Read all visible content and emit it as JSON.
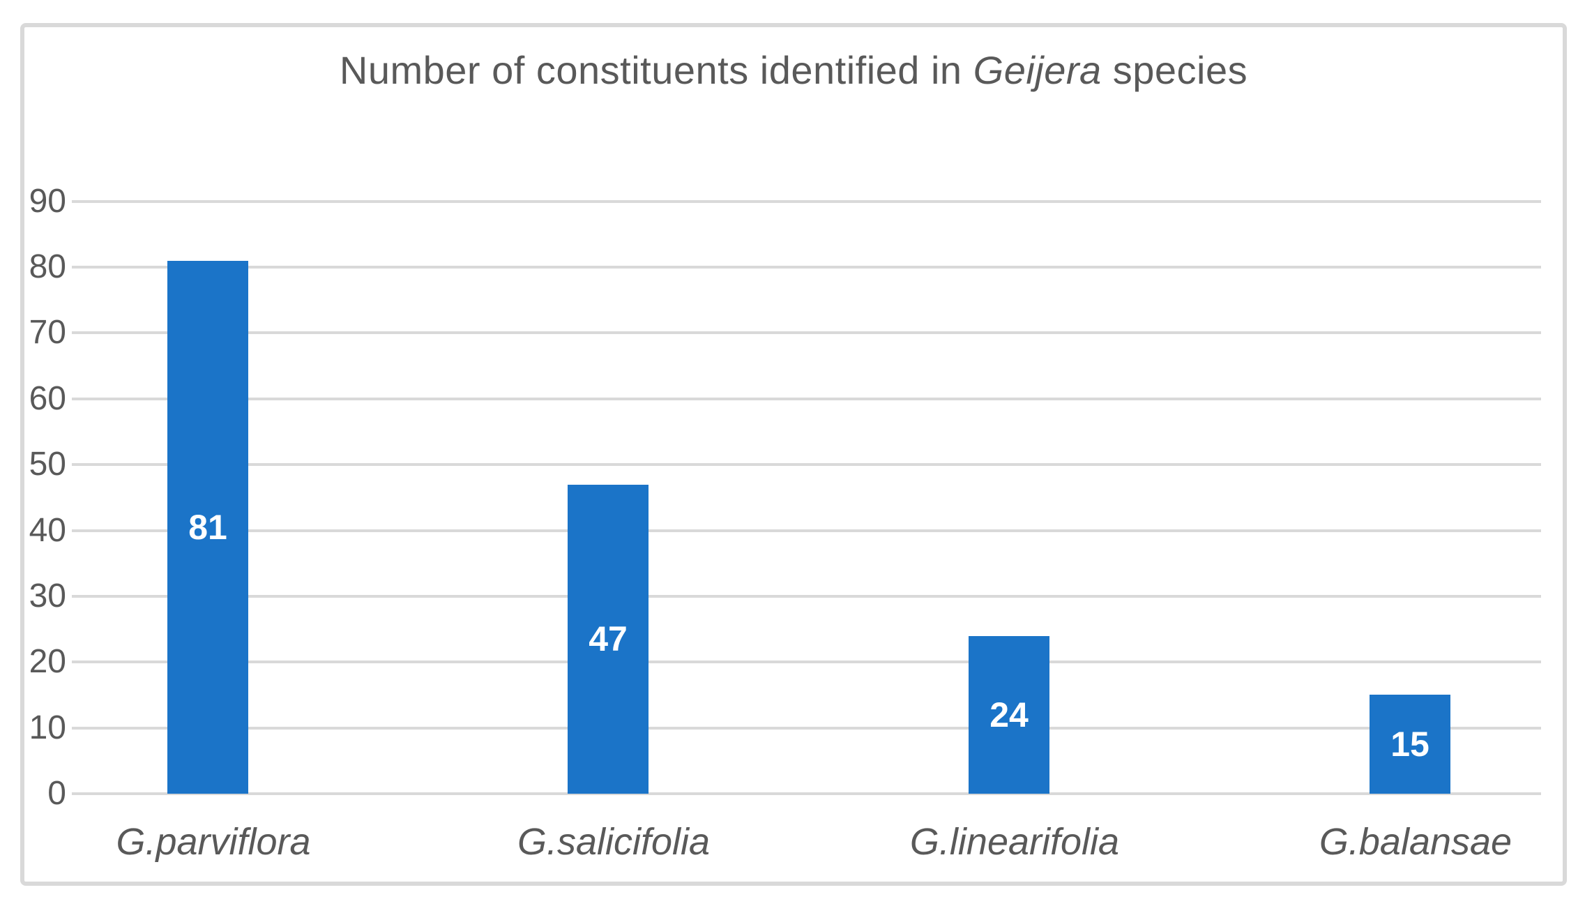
{
  "colors": {
    "bar_fill": "#1B74C8",
    "text": "#595959",
    "gridline": "#D9D9D9",
    "frame_border": "#D9D9D9",
    "value_label": "#FFFFFF",
    "background": "#FFFFFF"
  },
  "title": {
    "prefix": "Number of constituents identified in ",
    "italic_word": "Geijera",
    "suffix": " species"
  },
  "chart_data": {
    "type": "bar",
    "title": "Number of constituents identified in Geijera species",
    "categories": [
      "G.parviflora",
      "G.salicifolia",
      "G.linearifolia",
      "G.balansae"
    ],
    "values": [
      81,
      47,
      24,
      15
    ],
    "data_labels": [
      "81",
      "47",
      "24",
      "15"
    ],
    "data_label_position": "center-inside",
    "y_ticks": [
      0,
      10,
      20,
      30,
      40,
      50,
      60,
      70,
      80,
      90
    ],
    "ylim": [
      0,
      90
    ],
    "xlabel": "",
    "ylabel": "",
    "grid": "horizontal",
    "legend_position": "none",
    "category_label_style": "italic",
    "bar_color": "#1B74C8"
  }
}
